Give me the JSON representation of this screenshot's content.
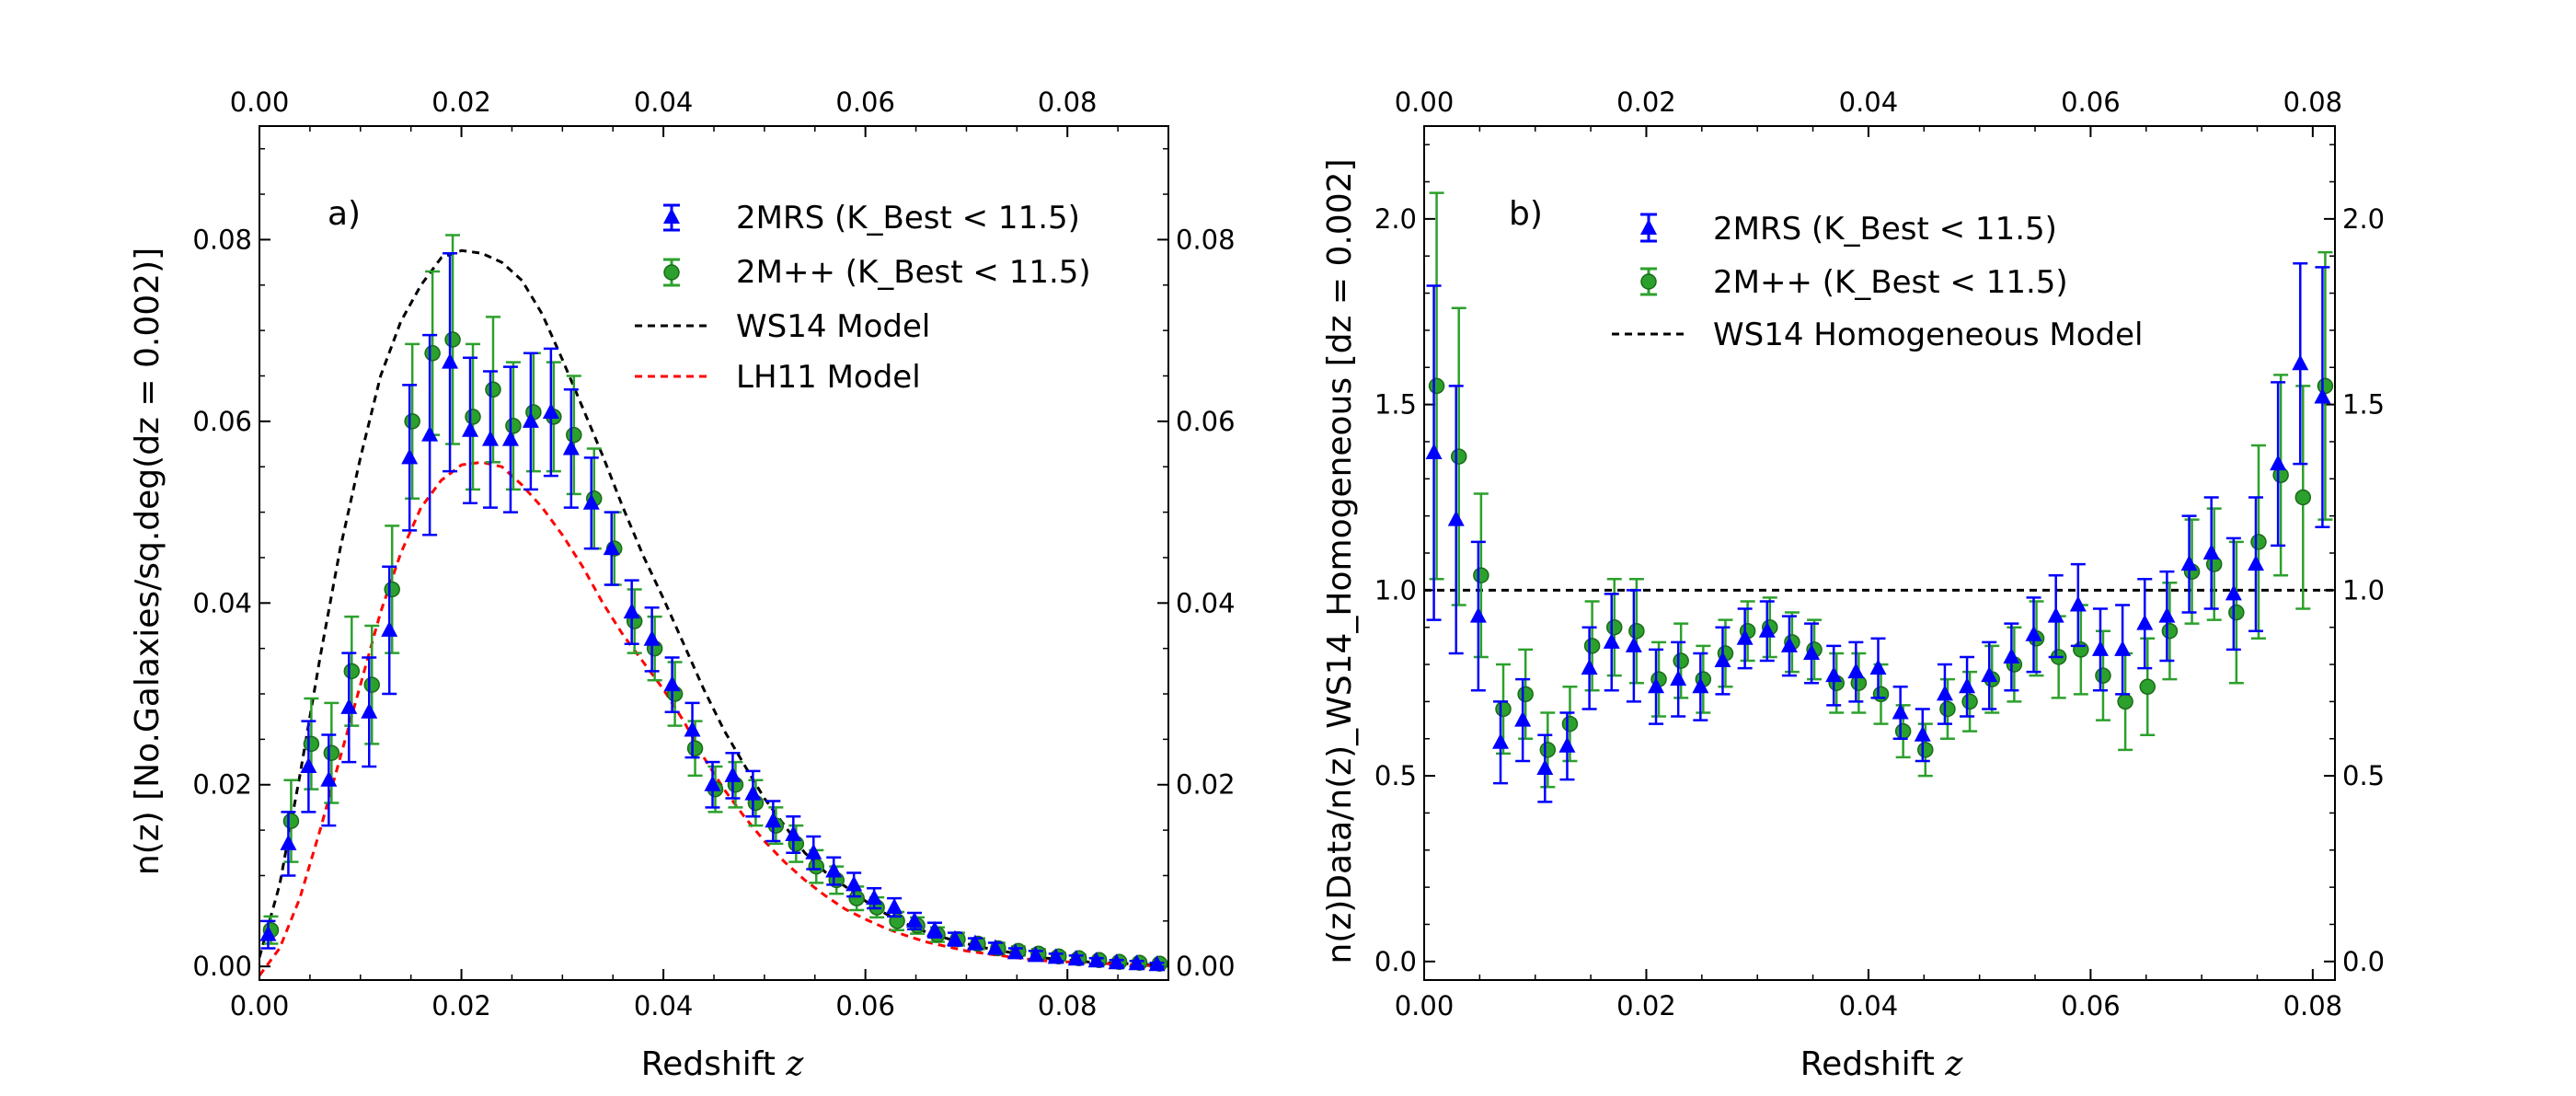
{
  "chart_data": [
    {
      "type": "scatter",
      "panel_label": "a)",
      "xlabel": "Redshift",
      "xlabel_var": "z",
      "ylabel": "n(z)  [No.Galaxies/sq.deg(dz = 0.002)]",
      "xlim": [
        0.0,
        0.09
      ],
      "ylim": [
        -0.0015,
        0.0925
      ],
      "xticks": [
        "0.00",
        "0.02",
        "0.04",
        "0.06",
        "0.08"
      ],
      "yticks": [
        "0.00",
        "0.02",
        "0.04",
        "0.06",
        "0.08"
      ],
      "legend": {
        "placement": "top-right",
        "entries": [
          "2MRS (K_Best < 11.5)",
          "2M++ (K_Best < 11.5)",
          "WS14 Model",
          "LH11 Model"
        ]
      },
      "series": [
        {
          "name": "2MRS (K_Best < 11.5)",
          "kind": "errorbar",
          "marker": "triangle",
          "color": "#0000ff",
          "x": [
            0.001,
            0.003,
            0.005,
            0.007,
            0.009,
            0.011,
            0.013,
            0.015,
            0.017,
            0.019,
            0.021,
            0.023,
            0.025,
            0.027,
            0.029,
            0.031,
            0.033,
            0.035,
            0.037,
            0.039,
            0.041,
            0.043,
            0.045,
            0.047,
            0.049,
            0.051,
            0.053,
            0.055,
            0.057,
            0.059,
            0.061,
            0.063,
            0.065,
            0.067,
            0.069,
            0.071,
            0.073,
            0.075,
            0.077,
            0.079,
            0.081,
            0.083,
            0.085,
            0.087,
            0.089
          ],
          "y": [
            0.0035,
            0.0135,
            0.022,
            0.0205,
            0.0285,
            0.028,
            0.037,
            0.056,
            0.0585,
            0.0665,
            0.059,
            0.058,
            0.058,
            0.06,
            0.061,
            0.057,
            0.051,
            0.046,
            0.039,
            0.036,
            0.031,
            0.026,
            0.02,
            0.021,
            0.019,
            0.016,
            0.0145,
            0.0125,
            0.0105,
            0.009,
            0.0075,
            0.0065,
            0.005,
            0.004,
            0.003,
            0.0025,
            0.002,
            0.0015,
            0.0012,
            0.001,
            0.0008,
            0.0006,
            0.0004,
            0.0003,
            0.0002
          ],
          "err": [
            0.0015,
            0.0035,
            0.005,
            0.005,
            0.006,
            0.006,
            0.007,
            0.008,
            0.011,
            0.012,
            0.008,
            0.0075,
            0.008,
            0.0075,
            0.007,
            0.0065,
            0.005,
            0.004,
            0.0035,
            0.0035,
            0.003,
            0.003,
            0.0025,
            0.0025,
            0.0025,
            0.0022,
            0.002,
            0.0018,
            0.0015,
            0.0013,
            0.0011,
            0.001,
            0.0009,
            0.0008,
            0.0007,
            0.0006,
            0.0006,
            0.0005,
            0.0005,
            0.0004,
            0.0004,
            0.0003,
            0.0003,
            0.0003,
            0.0002
          ]
        },
        {
          "name": "2M++ (K_Best < 11.5)",
          "kind": "errorbar",
          "marker": "circle",
          "color": "#2ca02c",
          "x": [
            0.001,
            0.003,
            0.005,
            0.007,
            0.009,
            0.011,
            0.013,
            0.015,
            0.017,
            0.019,
            0.021,
            0.023,
            0.025,
            0.027,
            0.029,
            0.031,
            0.033,
            0.035,
            0.037,
            0.039,
            0.041,
            0.043,
            0.045,
            0.047,
            0.049,
            0.051,
            0.053,
            0.055,
            0.057,
            0.059,
            0.061,
            0.063,
            0.065,
            0.067,
            0.069,
            0.071,
            0.073,
            0.075,
            0.077,
            0.079,
            0.081,
            0.083,
            0.085,
            0.087,
            0.089
          ],
          "y": [
            0.004,
            0.016,
            0.0245,
            0.0235,
            0.0325,
            0.031,
            0.0415,
            0.06,
            0.0675,
            0.069,
            0.0605,
            0.0635,
            0.0595,
            0.061,
            0.0605,
            0.0585,
            0.0515,
            0.046,
            0.038,
            0.035,
            0.03,
            0.024,
            0.0195,
            0.02,
            0.018,
            0.0155,
            0.0135,
            0.011,
            0.0095,
            0.0075,
            0.0065,
            0.005,
            0.0045,
            0.0035,
            0.003,
            0.0025,
            0.002,
            0.0017,
            0.0014,
            0.0011,
            0.0009,
            0.0007,
            0.0005,
            0.0004,
            0.0003
          ],
          "err": [
            0.0015,
            0.0045,
            0.005,
            0.0055,
            0.006,
            0.0065,
            0.007,
            0.0085,
            0.009,
            0.0115,
            0.008,
            0.008,
            0.007,
            0.0065,
            0.006,
            0.0065,
            0.0055,
            0.004,
            0.0035,
            0.0035,
            0.0035,
            0.003,
            0.0025,
            0.0025,
            0.0025,
            0.002,
            0.002,
            0.0018,
            0.0015,
            0.0013,
            0.0011,
            0.001,
            0.0009,
            0.0008,
            0.0007,
            0.0006,
            0.0006,
            0.0005,
            0.0005,
            0.0004,
            0.0004,
            0.0003,
            0.0003,
            0.0003,
            0.0002
          ]
        },
        {
          "name": "WS14 Model",
          "kind": "line",
          "style": "dashed",
          "color": "#000000",
          "x": [
            0.0,
            0.002,
            0.004,
            0.006,
            0.008,
            0.01,
            0.012,
            0.014,
            0.016,
            0.018,
            0.02,
            0.022,
            0.024,
            0.026,
            0.028,
            0.03,
            0.032,
            0.034,
            0.036,
            0.038,
            0.04,
            0.042,
            0.044,
            0.046,
            0.048,
            0.05,
            0.052,
            0.054,
            0.056,
            0.058,
            0.06,
            0.062,
            0.064,
            0.066,
            0.068,
            0.07,
            0.072,
            0.074,
            0.076,
            0.078,
            0.08,
            0.082,
            0.084,
            0.086,
            0.088,
            0.09
          ],
          "y": [
            0.001,
            0.009,
            0.021,
            0.034,
            0.046,
            0.056,
            0.065,
            0.071,
            0.075,
            0.078,
            0.0788,
            0.0785,
            0.0775,
            0.0755,
            0.0718,
            0.0668,
            0.0615,
            0.0562,
            0.0505,
            0.0452,
            0.0405,
            0.0355,
            0.0305,
            0.026,
            0.0222,
            0.0185,
            0.0155,
            0.0125,
            0.0104,
            0.0088,
            0.0072,
            0.0058,
            0.0047,
            0.0038,
            0.0031,
            0.0025,
            0.002,
            0.0016,
            0.0012,
            0.0009,
            0.0007,
            0.0005,
            0.0004,
            0.0003,
            0.0002,
            0.0001
          ]
        },
        {
          "name": "LH11 Model",
          "kind": "line",
          "style": "dashed",
          "color": "#ff0000",
          "x": [
            0.0,
            0.002,
            0.004,
            0.006,
            0.008,
            0.01,
            0.012,
            0.014,
            0.016,
            0.018,
            0.02,
            0.022,
            0.024,
            0.026,
            0.028,
            0.03,
            0.032,
            0.034,
            0.036,
            0.038,
            0.04,
            0.042,
            0.044,
            0.046,
            0.048,
            0.05,
            0.052,
            0.054,
            0.056,
            0.058,
            0.06,
            0.062,
            0.064,
            0.066,
            0.068,
            0.07,
            0.072,
            0.074,
            0.076,
            0.078,
            0.08,
            0.082,
            0.084,
            0.086,
            0.088,
            0.09
          ],
          "y": [
            -0.001,
            0.002,
            0.0075,
            0.015,
            0.023,
            0.031,
            0.039,
            0.0455,
            0.0505,
            0.0535,
            0.0552,
            0.0555,
            0.055,
            0.053,
            0.0505,
            0.0475,
            0.044,
            0.04,
            0.0365,
            0.0335,
            0.0305,
            0.027,
            0.023,
            0.0195,
            0.0165,
            0.0138,
            0.0115,
            0.0095,
            0.0078,
            0.0063,
            0.0052,
            0.0042,
            0.0034,
            0.0027,
            0.0022,
            0.0017,
            0.0014,
            0.0011,
            0.0008,
            0.0006,
            0.0005,
            0.0004,
            0.0003,
            0.0002,
            0.0001,
            0.0001
          ]
        }
      ]
    },
    {
      "type": "scatter",
      "panel_label": "b)",
      "xlabel": "Redshift",
      "xlabel_var": "z",
      "ylabel": "n(z)Data/n(z)_WS14_Homogeneous  [dz = 0.002]",
      "xlim": [
        0.0,
        0.082
      ],
      "ylim": [
        -0.05,
        2.25
      ],
      "xticks": [
        "0.00",
        "0.02",
        "0.04",
        "0.06",
        "0.08"
      ],
      "yticks": [
        "0.0",
        "0.5",
        "1.0",
        "1.5",
        "2.0"
      ],
      "legend": {
        "placement": "top",
        "entries": [
          "2MRS (K_Best < 11.5)",
          "2M++ (K_Best < 11.5)",
          "WS14 Homogeneous Model"
        ]
      },
      "series": [
        {
          "name": "2MRS (K_Best < 11.5)",
          "kind": "errorbar",
          "marker": "triangle",
          "color": "#0000ff",
          "x": [
            0.001,
            0.003,
            0.005,
            0.007,
            0.009,
            0.011,
            0.013,
            0.015,
            0.017,
            0.019,
            0.021,
            0.023,
            0.025,
            0.027,
            0.029,
            0.031,
            0.033,
            0.035,
            0.037,
            0.039,
            0.041,
            0.043,
            0.045,
            0.047,
            0.049,
            0.051,
            0.053,
            0.055,
            0.057,
            0.059,
            0.061,
            0.063,
            0.065,
            0.067,
            0.069,
            0.071,
            0.073,
            0.075,
            0.077,
            0.079,
            0.081
          ],
          "y": [
            1.37,
            1.19,
            0.93,
            0.59,
            0.65,
            0.52,
            0.58,
            0.79,
            0.86,
            0.85,
            0.74,
            0.76,
            0.74,
            0.81,
            0.87,
            0.89,
            0.85,
            0.83,
            0.77,
            0.78,
            0.79,
            0.67,
            0.61,
            0.72,
            0.74,
            0.77,
            0.82,
            0.88,
            0.93,
            0.96,
            0.84,
            0.84,
            0.91,
            0.93,
            1.07,
            1.1,
            0.99,
            1.07,
            1.34,
            1.61,
            1.52
          ],
          "err": [
            0.45,
            0.36,
            0.2,
            0.11,
            0.11,
            0.09,
            0.09,
            0.11,
            0.13,
            0.15,
            0.1,
            0.1,
            0.09,
            0.09,
            0.08,
            0.08,
            0.08,
            0.08,
            0.08,
            0.08,
            0.08,
            0.07,
            0.07,
            0.08,
            0.08,
            0.09,
            0.09,
            0.1,
            0.11,
            0.11,
            0.11,
            0.12,
            0.12,
            0.12,
            0.13,
            0.15,
            0.15,
            0.18,
            0.22,
            0.27,
            0.35
          ]
        },
        {
          "name": "2M++ (K_Best < 11.5)",
          "kind": "errorbar",
          "marker": "circle",
          "color": "#2ca02c",
          "x": [
            0.001,
            0.003,
            0.005,
            0.007,
            0.009,
            0.011,
            0.013,
            0.015,
            0.017,
            0.019,
            0.021,
            0.023,
            0.025,
            0.027,
            0.029,
            0.031,
            0.033,
            0.035,
            0.037,
            0.039,
            0.041,
            0.043,
            0.045,
            0.047,
            0.049,
            0.051,
            0.053,
            0.055,
            0.057,
            0.059,
            0.061,
            0.063,
            0.065,
            0.067,
            0.069,
            0.071,
            0.073,
            0.075,
            0.077,
            0.079,
            0.081
          ],
          "y": [
            1.55,
            1.36,
            1.04,
            0.68,
            0.72,
            0.57,
            0.64,
            0.85,
            0.9,
            0.89,
            0.76,
            0.81,
            0.76,
            0.83,
            0.89,
            0.9,
            0.86,
            0.84,
            0.75,
            0.75,
            0.72,
            0.62,
            0.57,
            0.68,
            0.7,
            0.76,
            0.8,
            0.87,
            0.82,
            0.84,
            0.77,
            0.7,
            0.74,
            0.89,
            1.05,
            1.07,
            0.94,
            1.13,
            1.31,
            1.25,
            1.55
          ],
          "err": [
            0.52,
            0.4,
            0.22,
            0.12,
            0.12,
            0.1,
            0.1,
            0.12,
            0.13,
            0.14,
            0.1,
            0.1,
            0.09,
            0.09,
            0.08,
            0.08,
            0.08,
            0.08,
            0.08,
            0.08,
            0.08,
            0.07,
            0.07,
            0.08,
            0.08,
            0.09,
            0.1,
            0.1,
            0.11,
            0.12,
            0.12,
            0.13,
            0.13,
            0.13,
            0.14,
            0.15,
            0.19,
            0.26,
            0.27,
            0.3,
            0.36
          ]
        },
        {
          "name": "WS14 Homogeneous Model",
          "kind": "hline",
          "style": "dashed",
          "color": "#000000",
          "y": 1.0
        }
      ]
    }
  ]
}
